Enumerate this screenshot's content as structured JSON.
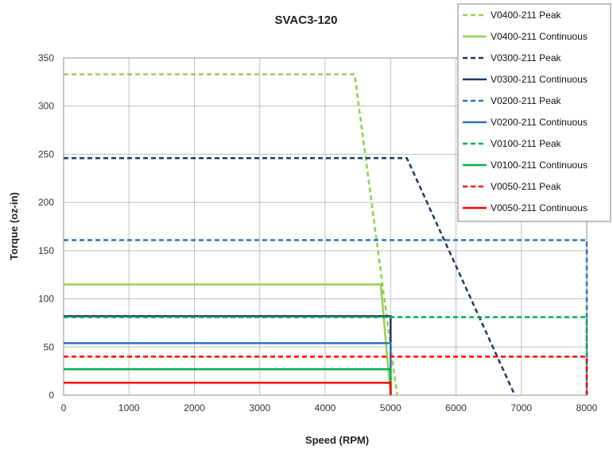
{
  "chart_data": {
    "type": "line",
    "title": "SVAC3-120",
    "xlabel": "Speed (RPM)",
    "ylabel": "Torque (oz-in)",
    "xlim": [
      0,
      8000
    ],
    "ylim": [
      0,
      350
    ],
    "xticks": [
      0,
      1000,
      2000,
      3000,
      4000,
      5000,
      6000,
      7000,
      8000
    ],
    "yticks": [
      0,
      50,
      100,
      150,
      200,
      250,
      300,
      350
    ],
    "grid": true,
    "legend_position": "top-right",
    "series": [
      {
        "name": "V0400-211 Peak",
        "style": "dashed",
        "color": "#92d050",
        "points": [
          [
            0,
            333
          ],
          [
            4450,
            333
          ],
          [
            5100,
            0
          ]
        ]
      },
      {
        "name": "V0400-211 Continuous",
        "style": "solid",
        "color": "#92d050",
        "points": [
          [
            0,
            115
          ],
          [
            4850,
            115
          ],
          [
            5000,
            0
          ]
        ]
      },
      {
        "name": "V0300-211 Peak",
        "style": "dashed",
        "color": "#1f3864",
        "points": [
          [
            0,
            246
          ],
          [
            5250,
            246
          ],
          [
            6900,
            0
          ]
        ]
      },
      {
        "name": "V0300-211 Continuous",
        "style": "solid",
        "color": "#1f3864",
        "points": [
          [
            0,
            82
          ],
          [
            5000,
            82
          ],
          [
            5000,
            0
          ]
        ]
      },
      {
        "name": "V0200-211 Peak",
        "style": "dashed",
        "color": "#2e75b6",
        "points": [
          [
            0,
            161
          ],
          [
            8000,
            161
          ],
          [
            8000,
            0
          ]
        ]
      },
      {
        "name": "V0200-211 Continuous",
        "style": "solid",
        "color": "#2e75b6",
        "points": [
          [
            0,
            54
          ],
          [
            5000,
            54
          ],
          [
            5000,
            0
          ]
        ]
      },
      {
        "name": "V0100-211 Peak",
        "style": "dashed",
        "color": "#00b050",
        "points": [
          [
            0,
            81
          ],
          [
            8000,
            81
          ],
          [
            8000,
            0
          ]
        ]
      },
      {
        "name": "V0100-211 Continuous",
        "style": "solid",
        "color": "#00b050",
        "points": [
          [
            0,
            27
          ],
          [
            5000,
            27
          ],
          [
            5000,
            0
          ]
        ]
      },
      {
        "name": "V0050-211 Peak",
        "style": "dashed",
        "color": "#ff0000",
        "points": [
          [
            0,
            40
          ],
          [
            8000,
            40
          ],
          [
            8000,
            0
          ]
        ]
      },
      {
        "name": "V0050-211 Continuous",
        "style": "solid",
        "color": "#ff0000",
        "points": [
          [
            0,
            13
          ],
          [
            5000,
            13
          ],
          [
            5000,
            0
          ]
        ]
      }
    ]
  }
}
